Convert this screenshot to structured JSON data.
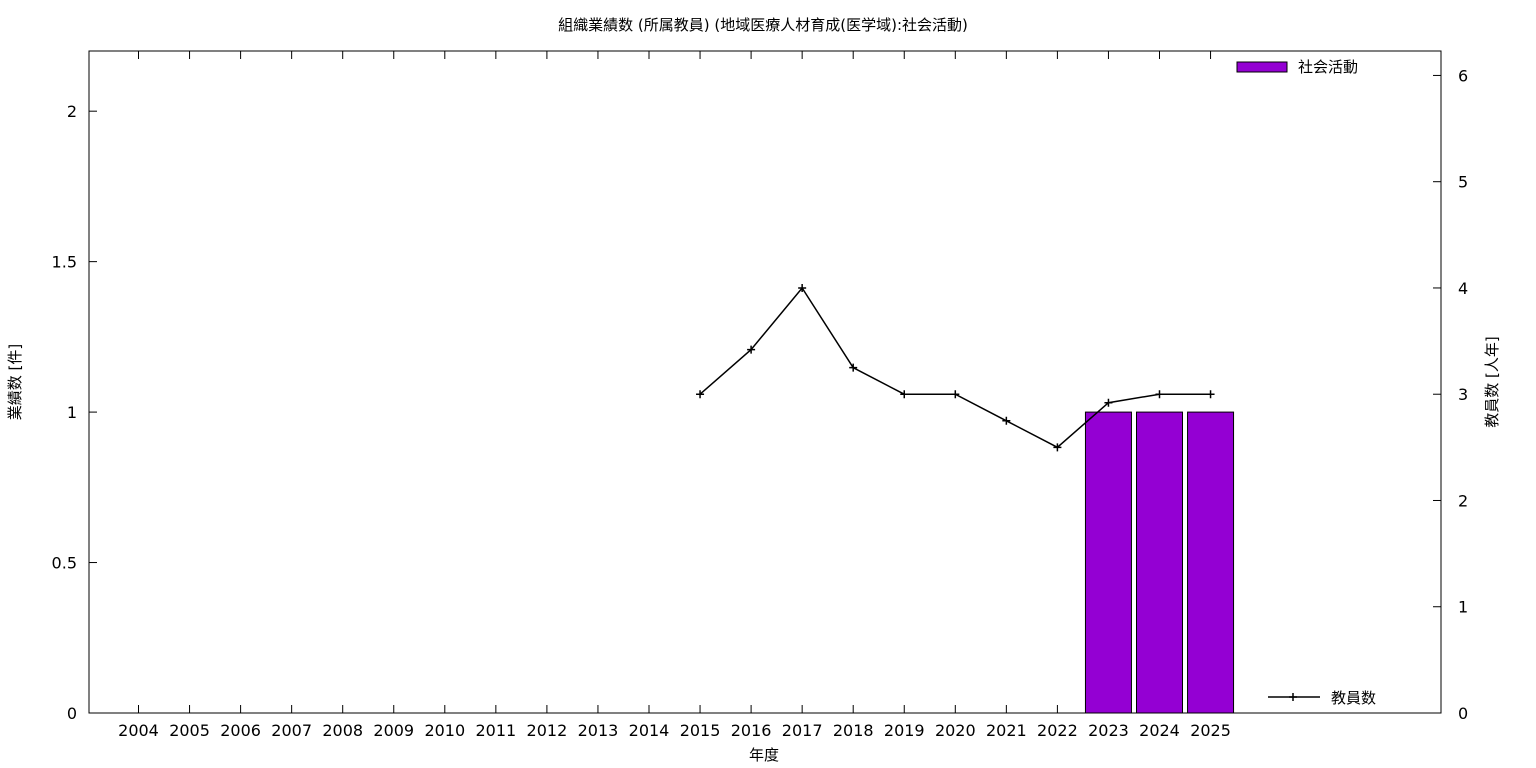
{
  "chart_data": {
    "type": "bar+line",
    "title": "組織業績数 (所属教員) (地域医療人材育成(医学域):社会活動)",
    "xlabel": "年度",
    "ylabel_left": "業績数 [件]",
    "ylabel_right": "教員数 [人年]",
    "categories": [
      "2004",
      "2005",
      "2006",
      "2007",
      "2008",
      "2009",
      "2010",
      "2011",
      "2012",
      "2013",
      "2014",
      "2015",
      "2016",
      "2017",
      "2018",
      "2019",
      "2020",
      "2021",
      "2022",
      "2023",
      "2024",
      "2025"
    ],
    "ylim_left": [
      0,
      2.2
    ],
    "yticks_left": [
      "0",
      "0.5",
      "1",
      "1.5",
      "2"
    ],
    "ylim_right": [
      0,
      6.23
    ],
    "yticks_right": [
      "0",
      "1",
      "2",
      "3",
      "4",
      "5",
      "6"
    ],
    "grid": false,
    "series": [
      {
        "name": "社会活動",
        "type": "bar",
        "axis": "left",
        "color": "#9400d3",
        "values": [
          0,
          0,
          0,
          0,
          0,
          0,
          0,
          0,
          0,
          0,
          0,
          0,
          0,
          0,
          0,
          0,
          0,
          0,
          0,
          1,
          1,
          1
        ]
      },
      {
        "name": "教員数",
        "type": "line",
        "axis": "right",
        "color": "#000000",
        "values": [
          null,
          null,
          null,
          null,
          null,
          null,
          null,
          null,
          null,
          null,
          null,
          3,
          3.42,
          4,
          3.25,
          3,
          3,
          2.75,
          2.5,
          2.92,
          3,
          3
        ]
      }
    ],
    "legend": [
      "top-right",
      "bottom-right"
    ]
  }
}
